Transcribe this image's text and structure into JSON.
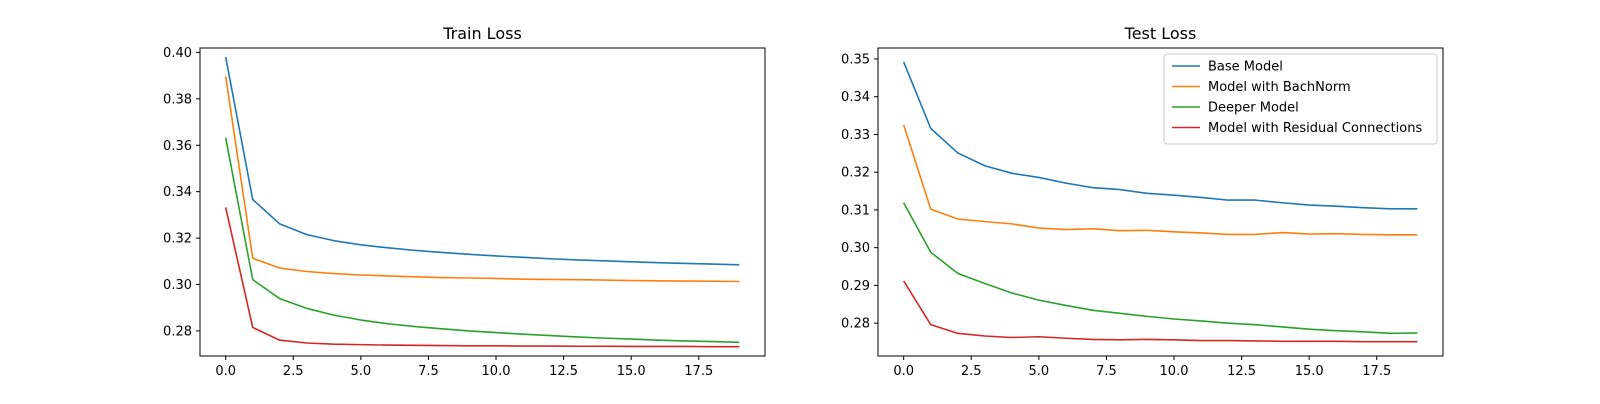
{
  "chart_data": [
    {
      "type": "line",
      "title": "Train Loss",
      "xlabel": "",
      "ylabel": "",
      "xlim": [
        -0.95,
        19.95
      ],
      "ylim": [
        0.2692,
        0.4019
      ],
      "xticks": [
        0.0,
        2.5,
        5.0,
        7.5,
        10.0,
        12.5,
        15.0,
        17.5
      ],
      "xtick_labels": [
        "0.0",
        "2.5",
        "5.0",
        "7.5",
        "10.0",
        "12.5",
        "15.0",
        "17.5"
      ],
      "yticks": [
        0.28,
        0.3,
        0.32,
        0.34,
        0.36,
        0.38,
        0.4
      ],
      "ytick_labels": [
        "0.28",
        "0.30",
        "0.32",
        "0.34",
        "0.36",
        "0.38",
        "0.40"
      ],
      "grid": false,
      "legend": null,
      "x": [
        0,
        1,
        2,
        3,
        4,
        5,
        6,
        7,
        8,
        9,
        10,
        11,
        12,
        13,
        14,
        15,
        16,
        17,
        18,
        19
      ],
      "series": [
        {
          "name": "Base Model",
          "color": "#1f77b4",
          "values": [
            0.398,
            0.3366,
            0.3261,
            0.3215,
            0.3189,
            0.3171,
            0.3158,
            0.3147,
            0.3138,
            0.313,
            0.3123,
            0.3117,
            0.3111,
            0.3106,
            0.3102,
            0.3098,
            0.3094,
            0.3091,
            0.3088,
            0.3085
          ]
        },
        {
          "name": "Model with BachNorm",
          "color": "#ff7f0e",
          "values": [
            0.3897,
            0.3113,
            0.3071,
            0.3056,
            0.3047,
            0.3041,
            0.3037,
            0.3033,
            0.303,
            0.3028,
            0.3026,
            0.3023,
            0.3022,
            0.3021,
            0.3019,
            0.3017,
            0.3016,
            0.3015,
            0.3014,
            0.3013
          ]
        },
        {
          "name": "Deeper Model",
          "color": "#2ca02c",
          "values": [
            0.3632,
            0.3021,
            0.2939,
            0.2897,
            0.2868,
            0.2847,
            0.2831,
            0.2819,
            0.2809,
            0.28,
            0.2793,
            0.2786,
            0.278,
            0.2774,
            0.2769,
            0.2765,
            0.276,
            0.2757,
            0.2754,
            0.2751
          ]
        },
        {
          "name": "Model with Residual Connections",
          "color": "#d62728",
          "values": [
            0.3332,
            0.2815,
            0.276,
            0.2748,
            0.2743,
            0.2741,
            0.2739,
            0.2738,
            0.2737,
            0.2736,
            0.2736,
            0.2735,
            0.2735,
            0.2734,
            0.2734,
            0.2733,
            0.2733,
            0.2733,
            0.2732,
            0.2732
          ]
        }
      ]
    },
    {
      "type": "line",
      "title": "Test Loss",
      "xlabel": "",
      "ylabel": "",
      "xlim": [
        -0.95,
        19.95
      ],
      "ylim": [
        0.2713,
        0.3529
      ],
      "xticks": [
        0.0,
        2.5,
        5.0,
        7.5,
        10.0,
        12.5,
        15.0,
        17.5
      ],
      "xtick_labels": [
        "0.0",
        "2.5",
        "5.0",
        "7.5",
        "10.0",
        "12.5",
        "15.0",
        "17.5"
      ],
      "yticks": [
        0.28,
        0.29,
        0.3,
        0.31,
        0.32,
        0.33,
        0.34,
        0.35
      ],
      "ytick_labels": [
        "0.28",
        "0.29",
        "0.30",
        "0.31",
        "0.32",
        "0.33",
        "0.34",
        "0.35"
      ],
      "grid": false,
      "legend": "top-right",
      "x": [
        0,
        1,
        2,
        3,
        4,
        5,
        6,
        7,
        8,
        9,
        10,
        11,
        12,
        13,
        14,
        15,
        16,
        17,
        18,
        19
      ],
      "series": [
        {
          "name": "Base Model",
          "color": "#1f77b4",
          "values": [
            0.3492,
            0.3316,
            0.3251,
            0.3217,
            0.3197,
            0.3186,
            0.3171,
            0.3159,
            0.3154,
            0.3144,
            0.3139,
            0.3133,
            0.3126,
            0.3126,
            0.3119,
            0.3113,
            0.311,
            0.3106,
            0.3103,
            0.3103
          ]
        },
        {
          "name": "Model with BachNorm",
          "color": "#ff7f0e",
          "values": [
            0.3325,
            0.3102,
            0.3076,
            0.3069,
            0.3063,
            0.3052,
            0.3048,
            0.305,
            0.3045,
            0.3046,
            0.3042,
            0.3039,
            0.3035,
            0.3035,
            0.304,
            0.3036,
            0.3037,
            0.3035,
            0.3034,
            0.3034
          ]
        },
        {
          "name": "Deeper Model",
          "color": "#2ca02c",
          "values": [
            0.3119,
            0.2988,
            0.2932,
            0.2905,
            0.288,
            0.2861,
            0.2847,
            0.2834,
            0.2826,
            0.2818,
            0.2811,
            0.2806,
            0.28,
            0.2796,
            0.279,
            0.2784,
            0.278,
            0.2777,
            0.2773,
            0.2774
          ]
        },
        {
          "name": "Model with Residual Connections",
          "color": "#d62728",
          "values": [
            0.2912,
            0.2796,
            0.2773,
            0.2766,
            0.2762,
            0.2764,
            0.276,
            0.2757,
            0.2756,
            0.2757,
            0.2756,
            0.2754,
            0.2754,
            0.2753,
            0.2752,
            0.2752,
            0.2752,
            0.2751,
            0.2751,
            0.2751
          ]
        }
      ]
    }
  ]
}
